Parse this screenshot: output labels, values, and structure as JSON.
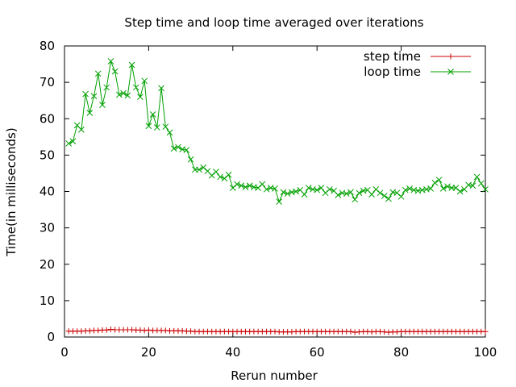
{
  "chart_data": {
    "type": "line",
    "title": "Step time and loop time averaged over iterations",
    "xlabel": "Rerun number",
    "ylabel": "Time(in milliseconds)",
    "xlim": [
      0,
      100
    ],
    "ylim": [
      0,
      80
    ],
    "xticks": [
      0,
      20,
      40,
      60,
      80,
      100
    ],
    "yticks": [
      0,
      10,
      20,
      30,
      40,
      50,
      60,
      70,
      80
    ],
    "grid": false,
    "legend_position": "top-right",
    "series": [
      {
        "name": "step time",
        "color": "#cc0000",
        "marker": "plus",
        "x": [
          1,
          2,
          3,
          4,
          5,
          6,
          7,
          8,
          9,
          10,
          11,
          12,
          13,
          14,
          15,
          16,
          17,
          18,
          19,
          20,
          21,
          22,
          23,
          24,
          25,
          26,
          27,
          28,
          29,
          30,
          31,
          32,
          33,
          34,
          35,
          36,
          37,
          38,
          39,
          40,
          41,
          42,
          43,
          44,
          45,
          46,
          47,
          48,
          49,
          50,
          51,
          52,
          53,
          54,
          55,
          56,
          57,
          58,
          59,
          60,
          61,
          62,
          63,
          64,
          65,
          66,
          67,
          68,
          69,
          70,
          71,
          72,
          73,
          74,
          75,
          76,
          77,
          78,
          79,
          80,
          81,
          82,
          83,
          84,
          85,
          86,
          87,
          88,
          89,
          90,
          91,
          92,
          93,
          94,
          95,
          96,
          97,
          98,
          99,
          100
        ],
        "values": [
          1.6,
          1.6,
          1.6,
          1.6,
          1.7,
          1.7,
          1.8,
          1.8,
          1.9,
          1.9,
          2.1,
          2.0,
          2.0,
          2.0,
          2.0,
          2.0,
          1.9,
          1.9,
          1.8,
          1.9,
          1.8,
          1.8,
          1.8,
          1.8,
          1.7,
          1.7,
          1.7,
          1.7,
          1.6,
          1.6,
          1.5,
          1.5,
          1.5,
          1.5,
          1.5,
          1.5,
          1.5,
          1.5,
          1.5,
          1.5,
          1.5,
          1.5,
          1.5,
          1.5,
          1.5,
          1.5,
          1.5,
          1.5,
          1.5,
          1.5,
          1.4,
          1.4,
          1.4,
          1.4,
          1.5,
          1.5,
          1.5,
          1.5,
          1.5,
          1.5,
          1.5,
          1.5,
          1.5,
          1.5,
          1.5,
          1.5,
          1.5,
          1.5,
          1.3,
          1.4,
          1.5,
          1.5,
          1.4,
          1.5,
          1.5,
          1.4,
          1.3,
          1.4,
          1.4,
          1.5,
          1.5,
          1.5,
          1.5,
          1.5,
          1.5,
          1.5,
          1.5,
          1.5,
          1.5,
          1.5,
          1.5,
          1.5,
          1.5,
          1.5,
          1.5,
          1.5,
          1.5,
          1.5,
          1.5,
          1.5
        ]
      },
      {
        "name": "loop time",
        "color": "#00a000",
        "marker": "cross",
        "x": [
          1,
          2,
          3,
          4,
          5,
          6,
          7,
          8,
          9,
          10,
          11,
          12,
          13,
          14,
          15,
          16,
          17,
          18,
          19,
          20,
          21,
          22,
          23,
          24,
          25,
          26,
          27,
          28,
          29,
          30,
          31,
          32,
          33,
          34,
          35,
          36,
          37,
          38,
          39,
          40,
          41,
          42,
          43,
          44,
          45,
          46,
          47,
          48,
          49,
          50,
          51,
          52,
          53,
          54,
          55,
          56,
          57,
          58,
          59,
          60,
          61,
          62,
          63,
          64,
          65,
          66,
          67,
          68,
          69,
          70,
          71,
          72,
          73,
          74,
          75,
          76,
          77,
          78,
          79,
          80,
          81,
          82,
          83,
          84,
          85,
          86,
          87,
          88,
          89,
          90,
          91,
          92,
          93,
          94,
          95,
          96,
          97,
          98,
          99,
          100
        ],
        "values": [
          53.2,
          53.8,
          58.2,
          57.0,
          66.8,
          61.6,
          66.2,
          72.4,
          63.8,
          68.6,
          75.8,
          73.0,
          66.6,
          67.0,
          66.4,
          74.8,
          68.6,
          66.0,
          70.4,
          58.0,
          61.2,
          57.6,
          68.4,
          57.8,
          56.2,
          51.8,
          52.2,
          51.6,
          51.4,
          48.8,
          46.0,
          46.0,
          46.6,
          45.6,
          44.4,
          45.4,
          44.0,
          43.6,
          44.6,
          41.0,
          42.0,
          41.6,
          41.2,
          41.6,
          41.2,
          41.0,
          42.0,
          40.6,
          41.0,
          40.8,
          37.2,
          39.8,
          39.4,
          39.8,
          40.0,
          40.4,
          39.2,
          41.0,
          40.6,
          40.4,
          41.0,
          39.6,
          40.6,
          40.2,
          39.0,
          39.6,
          39.4,
          39.8,
          37.8,
          39.6,
          40.2,
          40.4,
          39.2,
          40.6,
          39.6,
          38.8,
          38.0,
          39.8,
          39.6,
          38.6,
          40.4,
          40.8,
          40.4,
          40.2,
          40.4,
          40.6,
          40.8,
          42.4,
          43.2,
          40.8,
          41.4,
          41.0,
          41.0,
          40.0,
          40.6,
          41.8,
          41.6,
          44.0,
          42.2,
          40.6
        ]
      }
    ]
  }
}
